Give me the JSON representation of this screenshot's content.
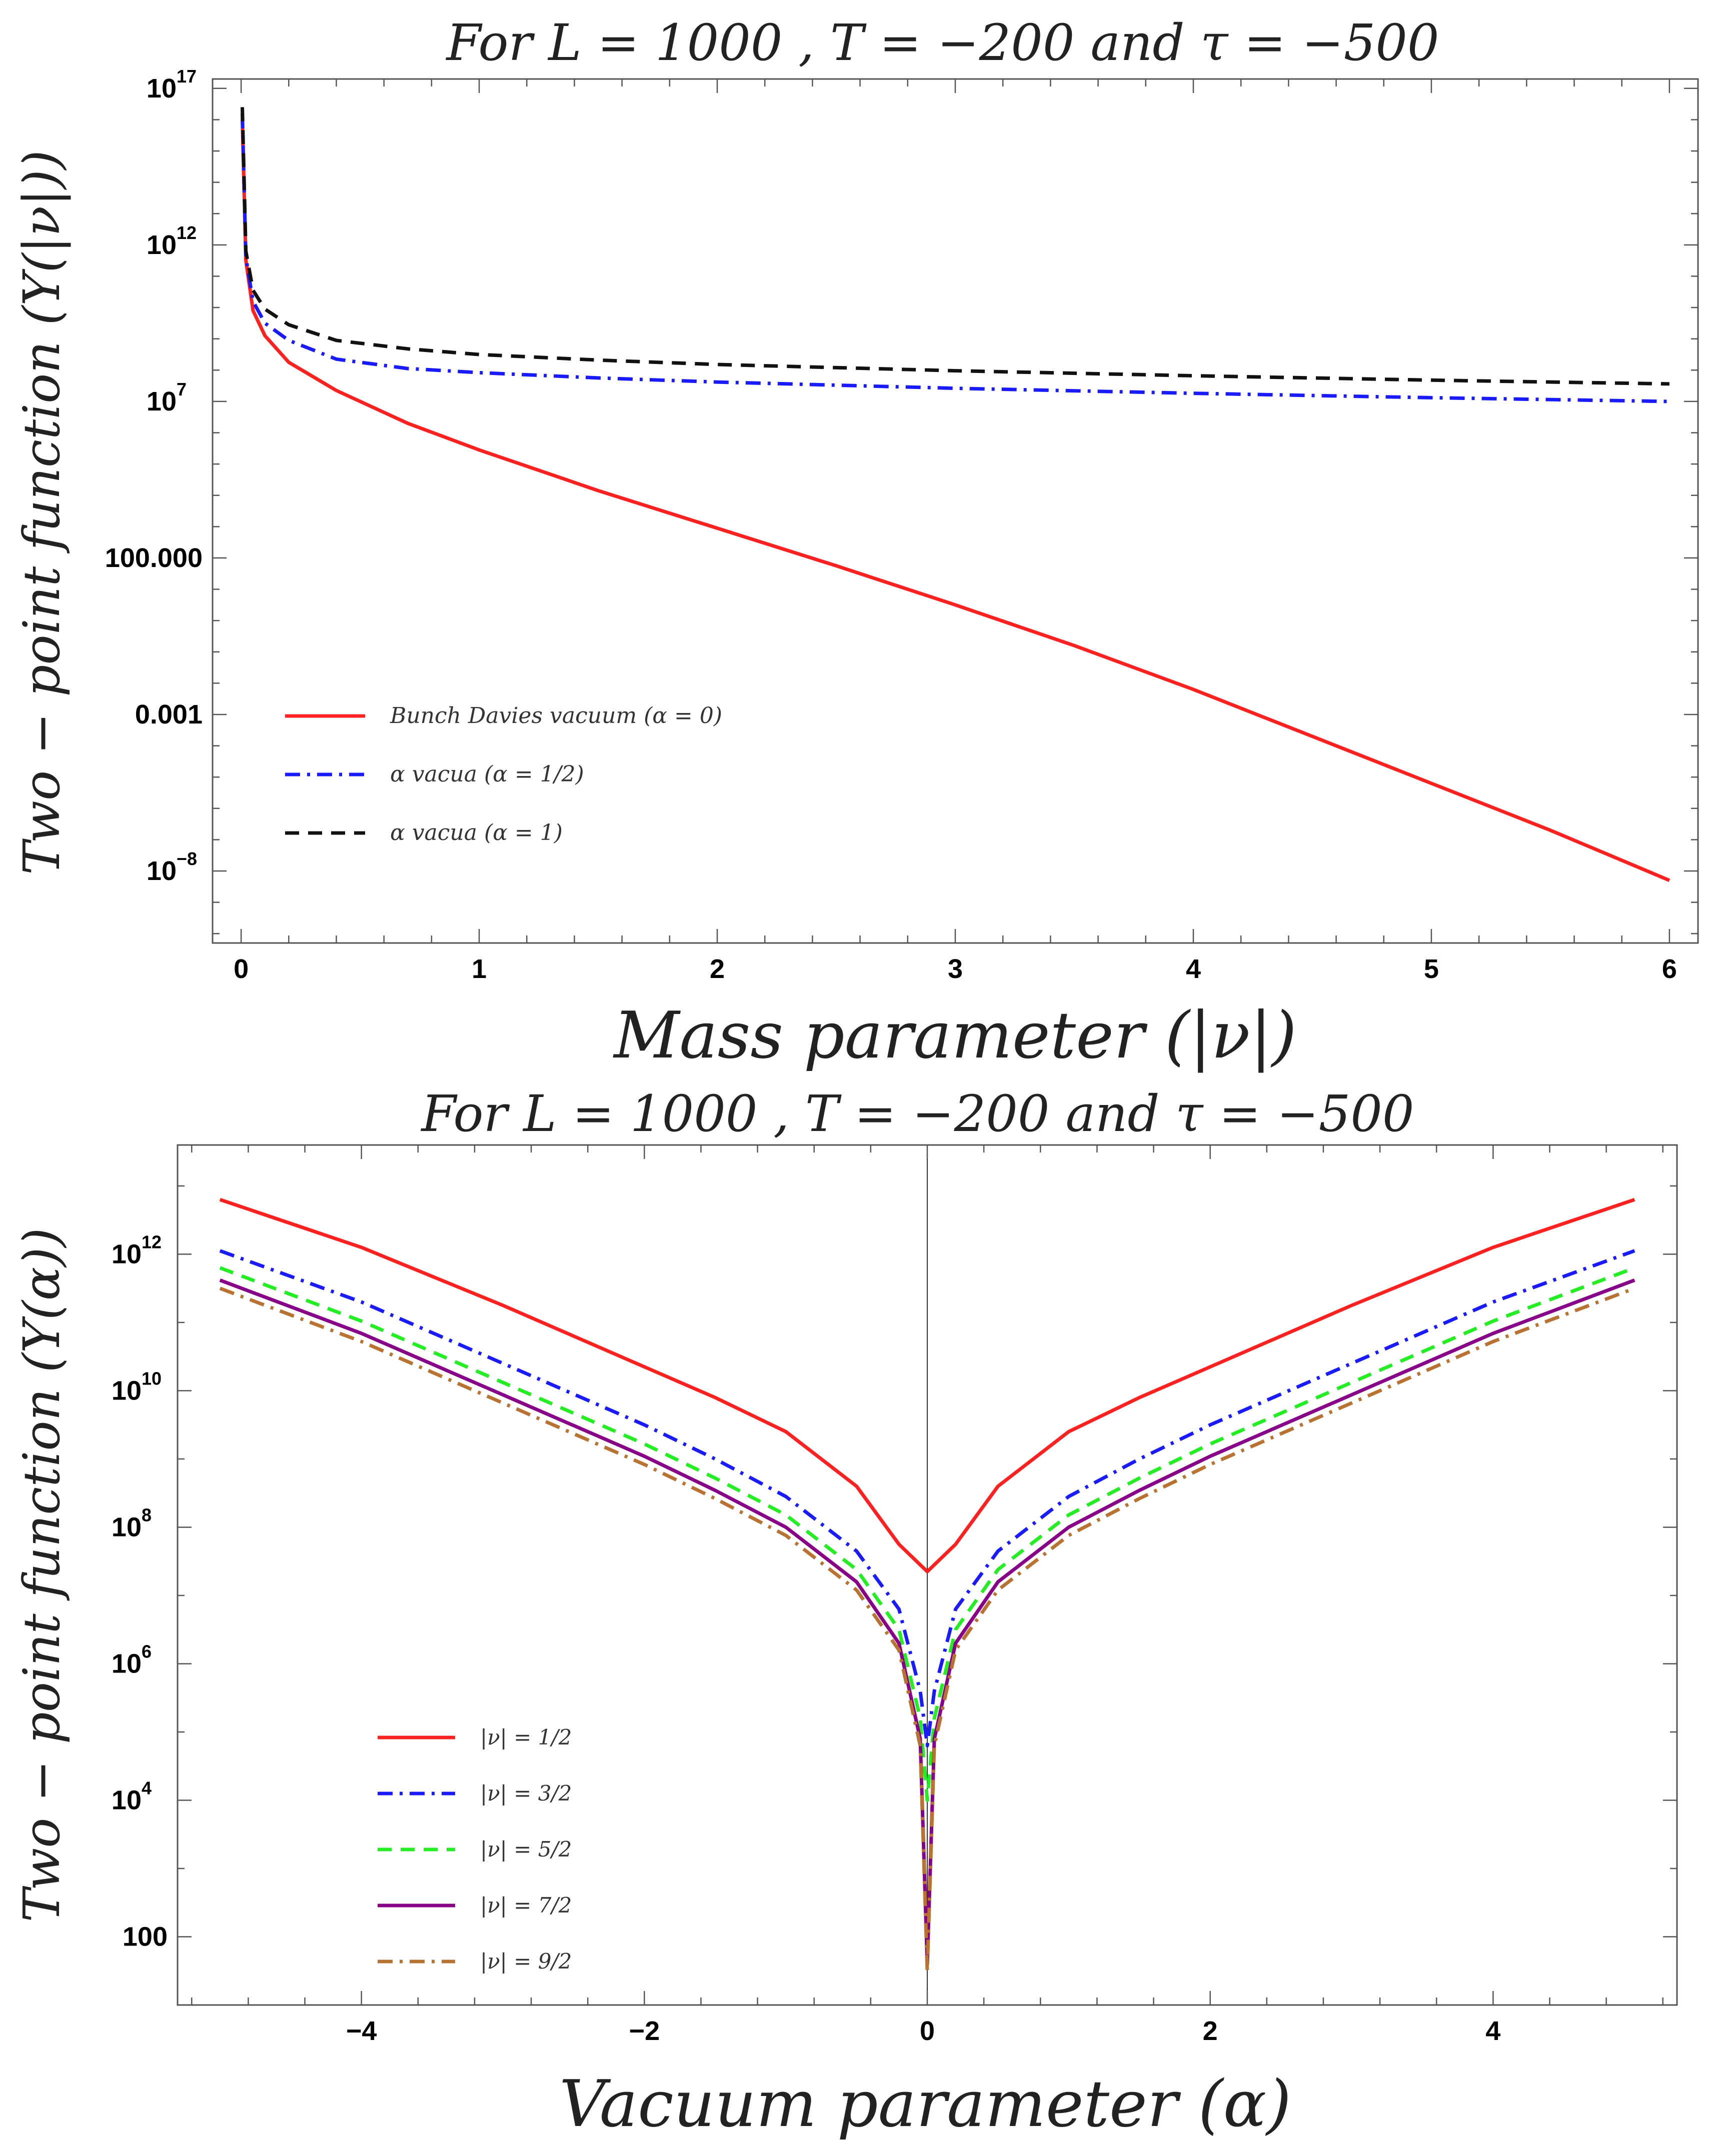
{
  "chart_data": [
    {
      "type": "line",
      "title": "For L = 1000 , T = −200 and τ = −500",
      "xlabel": "Mass parameter  (|ν|)",
      "ylabel": "Two − point function (Y(|ν|))",
      "yscale": "log",
      "xlim": [
        -0.12,
        6.12
      ],
      "ylim_log10": [
        -10.3,
        17.3
      ],
      "xticks": [
        {
          "v": 0,
          "label": "0"
        },
        {
          "v": 1,
          "label": "1"
        },
        {
          "v": 2,
          "label": "2"
        },
        {
          "v": 3,
          "label": "3"
        },
        {
          "v": 4,
          "label": "4"
        },
        {
          "v": 5,
          "label": "5"
        },
        {
          "v": 6,
          "label": "6"
        }
      ],
      "yticks": [
        {
          "exp": 17,
          "base": "10",
          "sup": "17"
        },
        {
          "exp": 12,
          "base": "10",
          "sup": "12"
        },
        {
          "exp": 7,
          "base": "10",
          "sup": "7"
        },
        {
          "exp": 2,
          "base": "100.000",
          "sup": ""
        },
        {
          "exp": -3,
          "base": "0.001",
          "sup": ""
        },
        {
          "exp": -8,
          "base": "10",
          "sup": "−8"
        }
      ],
      "legend_position": "left",
      "series": [
        {
          "name": "Bunch Davies vacuum (α = 0)",
          "color": "#ff2020",
          "dash": "solid",
          "x": [
            0.005,
            0.02,
            0.05,
            0.1,
            0.2,
            0.4,
            0.7,
            1,
            1.5,
            2,
            2.5,
            3,
            3.5,
            4,
            4.5,
            5,
            5.5,
            6
          ],
          "log10y": [
            16,
            11.5,
            9.9,
            9.1,
            8.25,
            7.35,
            6.3,
            5.45,
            4.15,
            2.95,
            1.75,
            0.5,
            -0.8,
            -2.2,
            -3.7,
            -5.2,
            -6.7,
            -8.3
          ]
        },
        {
          "name": "α vacua (α = 1/2)",
          "color": "#1a1aff",
          "dash": "dashdot",
          "x": [
            0.005,
            0.02,
            0.05,
            0.1,
            0.2,
            0.4,
            0.7,
            1,
            1.5,
            2,
            3,
            4,
            5,
            6
          ],
          "log10y": [
            16.2,
            11.6,
            10.2,
            9.5,
            8.95,
            8.35,
            8.05,
            7.92,
            7.75,
            7.62,
            7.42,
            7.26,
            7.12,
            7.0
          ]
        },
        {
          "name": "α vacua (α = 1)",
          "color": "#111111",
          "dash": "dashed",
          "x": [
            0.005,
            0.02,
            0.05,
            0.1,
            0.2,
            0.4,
            0.7,
            1,
            1.5,
            2,
            3,
            4,
            5,
            6
          ],
          "log10y": [
            16.4,
            11.8,
            10.55,
            9.95,
            9.45,
            8.95,
            8.68,
            8.5,
            8.32,
            8.18,
            7.98,
            7.82,
            7.68,
            7.56
          ]
        }
      ]
    },
    {
      "type": "line",
      "title": "For L = 1000 , T = −200 and τ = −500",
      "xlabel": "Vacuum parameter  (α)",
      "ylabel": "Two − point function (Y(α))",
      "yscale": "log",
      "xlim": [
        -5.3,
        5.3
      ],
      "ylim_log10": [
        1.0,
        13.6
      ],
      "xticks": [
        {
          "v": -4,
          "label": "−4"
        },
        {
          "v": -2,
          "label": "−2"
        },
        {
          "v": 0,
          "label": "0"
        },
        {
          "v": 2,
          "label": "2"
        },
        {
          "v": 4,
          "label": "4"
        }
      ],
      "yticks": [
        {
          "exp": 12,
          "base": "10",
          "sup": "12"
        },
        {
          "exp": 10,
          "base": "10",
          "sup": "10"
        },
        {
          "exp": 8,
          "base": "10",
          "sup": "8"
        },
        {
          "exp": 6,
          "base": "10",
          "sup": "6"
        },
        {
          "exp": 4,
          "base": "10",
          "sup": "4"
        },
        {
          "exp": 2,
          "base": "100",
          "sup": ""
        }
      ],
      "legend_position": "bottom-left",
      "series": [
        {
          "name": "|ν| = 1/2",
          "color": "#ff2020",
          "dash": "solid",
          "x": [
            -5,
            -4,
            -3,
            -2,
            -1.5,
            -1,
            -0.5,
            -0.2,
            0,
            0.2,
            0.5,
            1,
            1.5,
            2,
            3,
            4,
            5
          ],
          "log10y": [
            12.8,
            12.1,
            11.25,
            10.35,
            9.9,
            9.4,
            8.6,
            7.75,
            7.35,
            7.75,
            8.6,
            9.4,
            9.9,
            10.35,
            11.25,
            12.1,
            12.8
          ]
        },
        {
          "name": "|ν| = 3/2",
          "color": "#1a1aff",
          "dash": "dashdot",
          "x": [
            -5,
            -4,
            -3,
            -2,
            -1.5,
            -1,
            -0.5,
            -0.2,
            -0.05,
            0,
            0.05,
            0.2,
            0.5,
            1,
            1.5,
            2,
            3,
            4,
            5
          ],
          "log10y": [
            12.05,
            11.3,
            10.4,
            9.5,
            9.0,
            8.45,
            7.65,
            6.8,
            5.6,
            4.8,
            5.6,
            6.8,
            7.65,
            8.45,
            9.0,
            9.5,
            10.4,
            11.3,
            12.05
          ]
        },
        {
          "name": "|ν| = 5/2",
          "color": "#22ee22",
          "dash": "dashed",
          "x": [
            -5,
            -4,
            -3,
            -2,
            -1.5,
            -1,
            -0.5,
            -0.2,
            -0.05,
            0,
            0.05,
            0.2,
            0.5,
            1,
            1.5,
            2,
            3,
            4,
            5
          ],
          "log10y": [
            11.8,
            11.02,
            10.12,
            9.22,
            8.72,
            8.18,
            7.38,
            6.5,
            5.2,
            4.0,
            5.2,
            6.5,
            7.38,
            8.18,
            8.72,
            9.22,
            10.12,
            11.02,
            11.8
          ]
        },
        {
          "name": "|ν| = 7/2",
          "color": "#880088",
          "dash": "solid",
          "x": [
            -5,
            -4,
            -3,
            -2,
            -1.5,
            -1,
            -0.5,
            -0.2,
            -0.05,
            0,
            0.05,
            0.2,
            0.5,
            1,
            1.5,
            2,
            3,
            4,
            5
          ],
          "log10y": [
            11.62,
            10.84,
            9.94,
            9.04,
            8.54,
            8.0,
            7.2,
            6.3,
            4.9,
            1.6,
            4.9,
            6.3,
            7.2,
            8.0,
            8.54,
            9.04,
            9.94,
            10.84,
            11.62
          ]
        },
        {
          "name": "|ν| = 9/2",
          "color": "#b87333",
          "dash": "dashdot",
          "x": [
            -5,
            -4,
            -3,
            -2,
            -1.5,
            -1,
            -0.5,
            -0.2,
            -0.05,
            0,
            0.05,
            0.2,
            0.5,
            1,
            1.5,
            2,
            3,
            4,
            5
          ],
          "log10y": [
            11.5,
            10.72,
            9.82,
            8.92,
            8.42,
            7.88,
            7.08,
            6.2,
            4.8,
            1.5,
            4.8,
            6.2,
            7.08,
            7.88,
            8.42,
            8.92,
            9.82,
            10.72,
            11.5
          ]
        }
      ]
    }
  ]
}
